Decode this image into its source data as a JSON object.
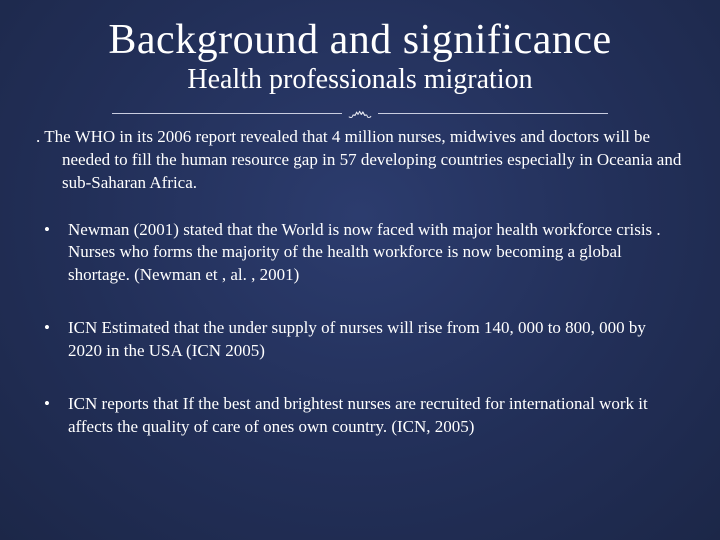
{
  "slide": {
    "title": "Background and significance",
    "subtitle": "Health professionals migration",
    "flourish": "་",
    "lead": ". The WHO in its 2006 report revealed that 4 million nurses, midwives and doctors will be needed to fill the human resource gap in 57 developing countries especially in Oceania and sub-Saharan Africa.",
    "bullets": [
      "Newman (2001) stated that the World is now faced with major health workforce  crisis . Nurses who forms the majority of the health workforce is now  becoming  a global shortage. (Newman et , al. , 2001)",
      "ICN Estimated that the under supply of nurses will rise from 140, 000 to 800, 000 by 2020 in the USA (ICN 2005)",
      "ICN reports that If  the best and brightest  nurses are recruited for international work it affects the quality of care of ones own country. (ICN, 2005)"
    ]
  },
  "style": {
    "background_center": "#2c3c6e",
    "background_edge": "#1c2748",
    "text_color": "#ffffff",
    "divider_color": "#c9cde0",
    "title_fontsize": 42,
    "subtitle_fontsize": 28,
    "body_fontsize": 17,
    "font_family_title": "Palatino Linotype",
    "font_family_body": "Palatino Linotype"
  }
}
